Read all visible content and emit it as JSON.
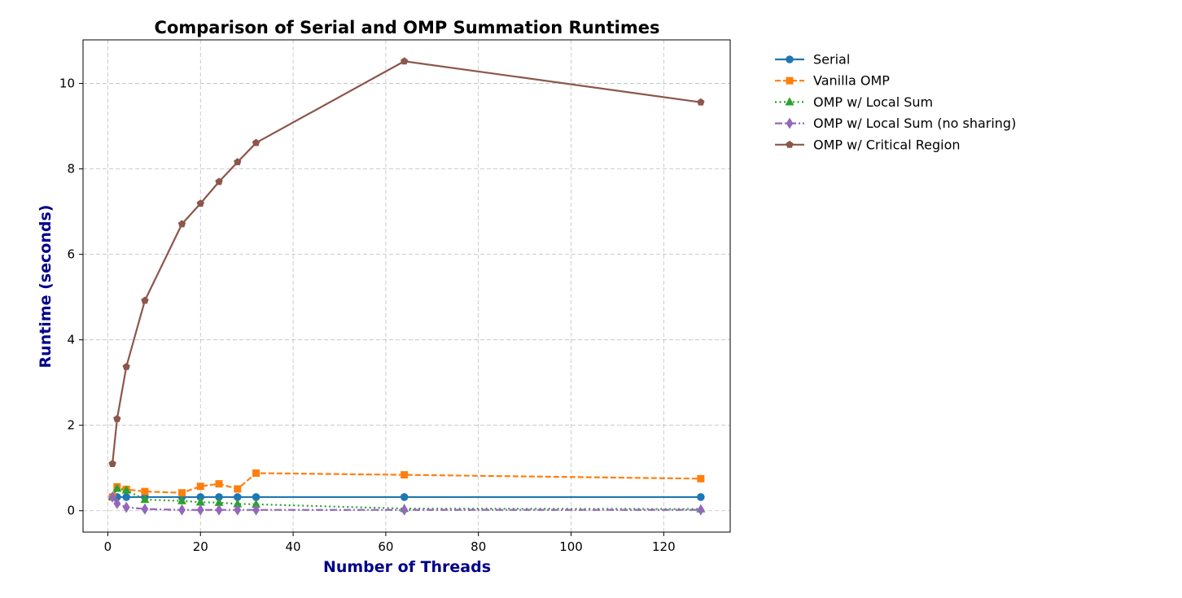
{
  "chart_data": {
    "type": "line",
    "title": "Comparison of Serial and OMP Summation Runtimes",
    "xlabel": "Number of Threads",
    "ylabel": "Runtime (seconds)",
    "xlim": [
      -5.35,
      134.35
    ],
    "ylim": [
      -0.5,
      11.02
    ],
    "xticks": [
      0,
      20,
      40,
      60,
      80,
      100,
      120
    ],
    "yticks": [
      0,
      2,
      4,
      6,
      8,
      10
    ],
    "grid": true,
    "legend_position": "outside-top-right",
    "series": [
      {
        "name": "Serial",
        "color": "#1f77b4",
        "marker": "circle",
        "line_style": "solid",
        "x": [
          1,
          2,
          4,
          8,
          16,
          20,
          24,
          28,
          32,
          64,
          128
        ],
        "y": [
          0.32,
          0.32,
          0.32,
          0.32,
          0.32,
          0.32,
          0.32,
          0.32,
          0.32,
          0.32,
          0.32
        ]
      },
      {
        "name": "Vanilla OMP",
        "color": "#ff7f0e",
        "marker": "square",
        "line_style": "dashed",
        "x": [
          1,
          2,
          4,
          8,
          16,
          20,
          24,
          28,
          32,
          64,
          128
        ],
        "y": [
          0.32,
          0.56,
          0.5,
          0.45,
          0.42,
          0.57,
          0.63,
          0.51,
          0.88,
          0.84,
          0.75
        ]
      },
      {
        "name": "OMP w/ Local Sum",
        "color": "#2ca02c",
        "marker": "triangle",
        "line_style": "dotted",
        "x": [
          1,
          2,
          4,
          8,
          16,
          20,
          24,
          28,
          32,
          64,
          128
        ],
        "y": [
          0.33,
          0.52,
          0.48,
          0.26,
          0.23,
          0.2,
          0.19,
          0.16,
          0.15,
          0.05,
          0.04
        ]
      },
      {
        "name": "OMP w/ Local Sum (no sharing)",
        "color": "#9467bd",
        "marker": "diamond",
        "line_style": "dashdot",
        "x": [
          1,
          2,
          4,
          8,
          16,
          20,
          24,
          28,
          32,
          64,
          128
        ],
        "y": [
          0.32,
          0.17,
          0.08,
          0.04,
          0.02,
          0.02,
          0.02,
          0.02,
          0.02,
          0.02,
          0.02
        ]
      },
      {
        "name": "OMP w/ Critical Region",
        "color": "#8c564b",
        "marker": "pentagon",
        "line_style": "solid",
        "x": [
          1,
          2,
          4,
          8,
          16,
          20,
          24,
          28,
          32,
          64,
          128
        ],
        "y": [
          1.1,
          2.15,
          3.37,
          4.92,
          6.71,
          7.19,
          7.7,
          8.16,
          8.61,
          10.52,
          9.56
        ]
      }
    ]
  }
}
